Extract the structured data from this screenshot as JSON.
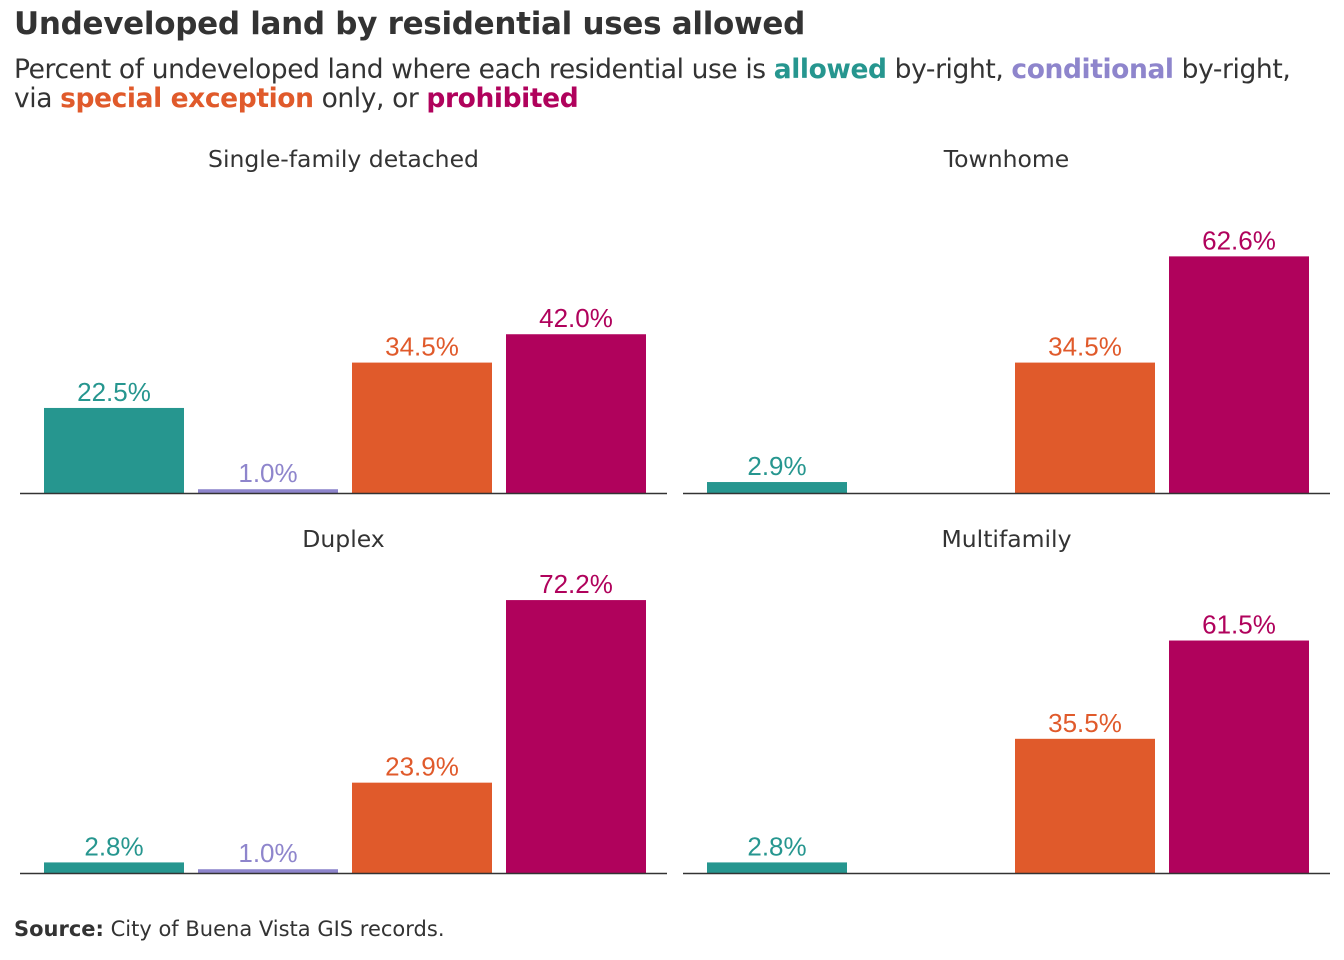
{
  "title": "Undeveloped land by residential uses allowed",
  "subtitle": {
    "part1": "Percent of undeveloped land where each residential use is ",
    "allowed": "allowed",
    "part2": " by-right, ",
    "conditional": "conditional",
    "part3": " by-right, via ",
    "special": "special exception",
    "part4": " only, or ",
    "prohibited": "prohibited"
  },
  "source": {
    "label": "Source:",
    "text": " City of Buena Vista GIS records."
  },
  "colors": {
    "allowed": "#26968f",
    "conditional": "#8e85cc",
    "special": "#e05a2b",
    "prohibited": "#b0025c",
    "axis": "#333333"
  },
  "chart_data": {
    "type": "bar",
    "categories": [
      "allowed",
      "conditional",
      "special exception",
      "prohibited"
    ],
    "ylim": [
      0,
      80
    ],
    "panels": [
      {
        "title": "Single-family detached",
        "values": [
          22.5,
          1.0,
          34.5,
          42.0
        ],
        "labels": [
          "22.5%",
          "1.0%",
          "34.5%",
          "42.0%"
        ]
      },
      {
        "title": "Townhome",
        "values": [
          2.9,
          null,
          34.5,
          62.6
        ],
        "labels": [
          "2.9%",
          "",
          "34.5%",
          "62.6%"
        ]
      },
      {
        "title": "Duplex",
        "values": [
          2.8,
          1.0,
          23.9,
          72.2
        ],
        "labels": [
          "2.8%",
          "1.0%",
          "23.9%",
          "72.2%"
        ]
      },
      {
        "title": "Multifamily",
        "values": [
          2.8,
          null,
          35.5,
          61.5
        ],
        "labels": [
          "2.8%",
          "",
          "35.5%",
          "61.5%"
        ]
      }
    ]
  }
}
